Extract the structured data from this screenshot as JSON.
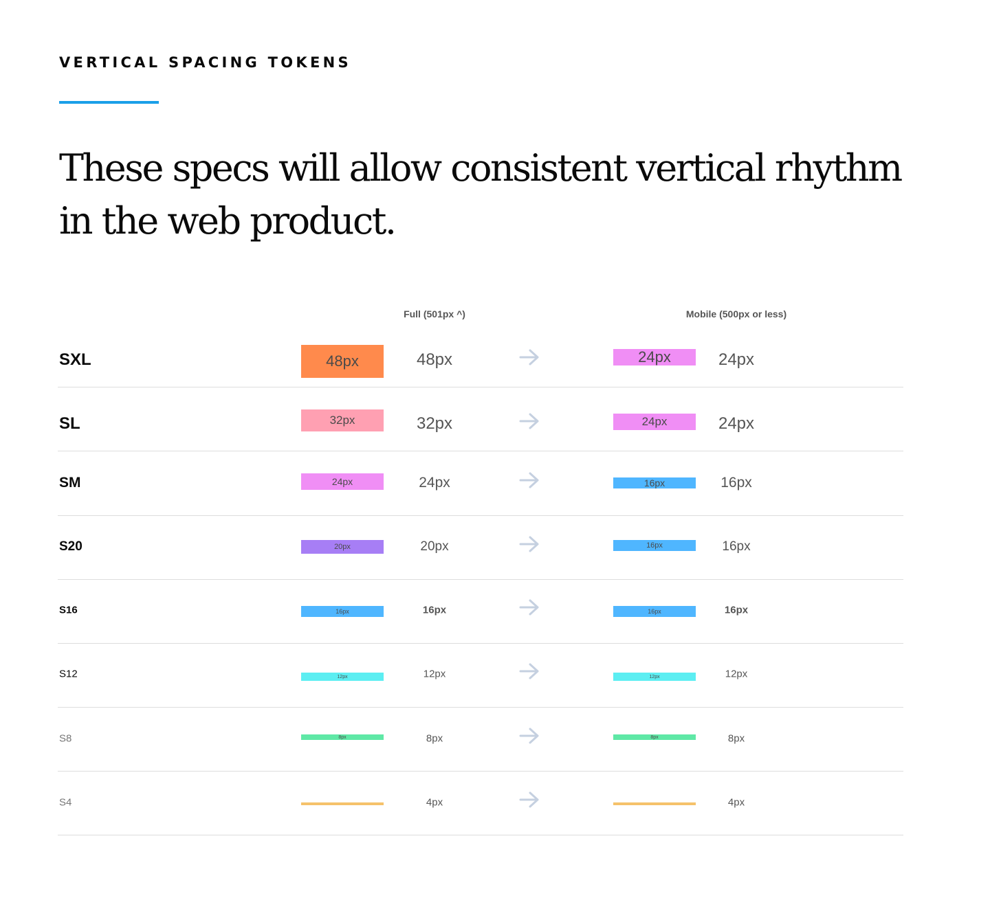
{
  "header": {
    "eyebrow": "VERTICAL SPACING TOKENS",
    "headline": "These specs will allow consistent vertical rhythm in the web product."
  },
  "columns": {
    "full": "Full (501px ^)",
    "mobile": "Mobile (500px or less)"
  },
  "colors": {
    "accent_rule": "#1a9fe8",
    "arrow": "#c5d0e0",
    "divider": "#dddddd"
  },
  "rows": [
    {
      "token": "SXL",
      "full_value": "48px",
      "full_swatch_label": "48px",
      "full_color": "#ff8a4c",
      "mobile_value": "24px",
      "mobile_swatch_label": "24px",
      "mobile_color": "#f08ef5"
    },
    {
      "token": "SL",
      "full_value": "32px",
      "full_swatch_label": "32px",
      "full_color": "#ffa0b2",
      "mobile_value": "24px",
      "mobile_swatch_label": "24px",
      "mobile_color": "#f08ef5"
    },
    {
      "token": "SM",
      "full_value": "24px",
      "full_swatch_label": "24px",
      "full_color": "#f08ef5",
      "mobile_value": "16px",
      "mobile_swatch_label": "16px",
      "mobile_color": "#4fb6ff"
    },
    {
      "token": "S20",
      "full_value": "20px",
      "full_swatch_label": "20px",
      "full_color": "#a77ef5",
      "mobile_value": "16px",
      "mobile_swatch_label": "16px",
      "mobile_color": "#4fb6ff"
    },
    {
      "token": "S16",
      "full_value": "16px",
      "full_swatch_label": "16px",
      "full_color": "#4fb6ff",
      "mobile_value": "16px",
      "mobile_swatch_label": "16px",
      "mobile_color": "#4fb6ff"
    },
    {
      "token": "S12",
      "full_value": "12px",
      "full_swatch_label": "12px",
      "full_color": "#5ceef2",
      "mobile_value": "12px",
      "mobile_swatch_label": "12px",
      "mobile_color": "#5ceef2"
    },
    {
      "token": "S8",
      "full_value": "8px",
      "full_swatch_label": "8px",
      "full_color": "#5fe8a6",
      "mobile_value": "8px",
      "mobile_swatch_label": "8px",
      "mobile_color": "#5fe8a6"
    },
    {
      "token": "S4",
      "full_value": "4px",
      "full_swatch_label": "",
      "full_color": "#f5c26b",
      "mobile_value": "4px",
      "mobile_swatch_label": "",
      "mobile_color": "#f5c26b"
    }
  ]
}
